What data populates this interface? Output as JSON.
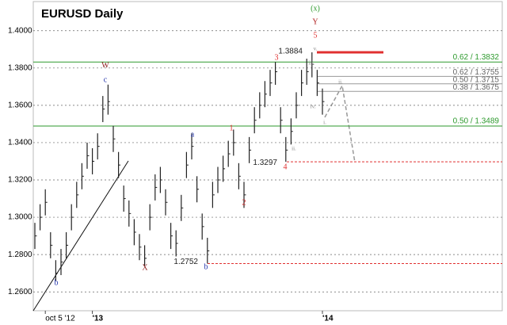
{
  "chart_data": {
    "type": "range_bar",
    "title": "EURUSD Daily",
    "categories": [
      null,
      null,
      "oct 5 '12",
      null,
      null,
      null,
      null,
      null,
      null,
      null,
      null,
      "'13",
      null,
      null,
      null,
      null,
      null,
      null,
      null,
      null,
      null,
      null,
      null,
      null,
      null,
      null,
      null,
      null,
      null,
      null,
      null,
      null,
      null,
      null,
      null,
      null,
      null,
      null,
      null,
      null,
      null,
      null,
      null,
      null,
      null,
      null,
      null,
      null,
      null,
      null,
      null,
      null,
      null,
      null,
      null,
      "'14"
    ],
    "series": [
      {
        "name": "high",
        "color": "#222222",
        "values": [
          1.297,
          1.307,
          1.315,
          1.292,
          1.277,
          1.283,
          1.292,
          1.307,
          1.319,
          1.329,
          1.34,
          1.337,
          1.345,
          1.365,
          1.3711,
          1.349,
          1.335,
          1.317,
          1.309,
          1.299,
          1.291,
          1.285,
          1.307,
          1.323,
          1.327,
          1.315,
          1.297,
          1.293,
          1.312,
          1.335,
          1.345,
          1.322,
          1.302,
          1.289,
          1.319,
          1.327,
          1.333,
          1.341,
          1.347,
          1.329,
          1.319,
          1.343,
          1.359,
          1.367,
          1.373,
          1.379,
          1.3832,
          1.359,
          1.343,
          1.353,
          1.367,
          1.379,
          1.385,
          1.3884,
          1.379,
          1.369
        ]
      },
      {
        "name": "low",
        "color": "#222222",
        "values": [
          1.283,
          1.293,
          1.301,
          1.278,
          1.266,
          1.269,
          1.278,
          1.293,
          1.305,
          1.315,
          1.326,
          1.323,
          1.331,
          1.351,
          1.355,
          1.335,
          1.321,
          1.303,
          1.295,
          1.285,
          1.277,
          1.274,
          1.293,
          1.309,
          1.313,
          1.301,
          1.283,
          1.279,
          1.298,
          1.321,
          1.331,
          1.308,
          1.288,
          1.2752,
          1.305,
          1.313,
          1.319,
          1.327,
          1.333,
          1.315,
          1.305,
          1.329,
          1.345,
          1.353,
          1.359,
          1.365,
          1.371,
          1.345,
          1.3297,
          1.339,
          1.353,
          1.365,
          1.371,
          1.375,
          1.365,
          1.355
        ]
      },
      {
        "name": "close",
        "color": "#222222",
        "values": [
          1.29,
          1.3,
          1.308,
          1.285,
          1.27,
          1.276,
          1.285,
          1.3,
          1.312,
          1.322,
          1.333,
          1.33,
          1.338,
          1.358,
          1.362,
          1.342,
          1.328,
          1.31,
          1.302,
          1.292,
          1.284,
          1.278,
          1.3,
          1.316,
          1.32,
          1.308,
          1.29,
          1.286,
          1.305,
          1.328,
          1.338,
          1.315,
          1.295,
          1.282,
          1.312,
          1.32,
          1.326,
          1.334,
          1.34,
          1.322,
          1.312,
          1.336,
          1.352,
          1.36,
          1.366,
          1.372,
          1.378,
          1.352,
          1.336,
          1.346,
          1.36,
          1.372,
          1.378,
          1.382,
          1.372,
          1.362
        ]
      }
    ],
    "ylim": [
      1.2499,
      1.4156
    ],
    "yticks": [
      {
        "value": 1.26,
        "label": "1.2600"
      },
      {
        "value": 1.28,
        "label": "1.2800"
      },
      {
        "value": 1.3,
        "label": "1.3000"
      },
      {
        "value": 1.32,
        "label": "1.3200"
      },
      {
        "value": 1.34,
        "label": "1.3400"
      },
      {
        "value": 1.36,
        "label": "1.3600"
      },
      {
        "value": 1.38,
        "label": "1.3800"
      },
      {
        "value": 1.4,
        "label": "1.4000"
      }
    ],
    "grid": true,
    "levels": [
      {
        "value": 1.3832,
        "label": "0.62 / 1.3832",
        "color": "#2e9a2e",
        "style": "full"
      },
      {
        "value": 1.3489,
        "label": "0.50 / 1.3489",
        "color": "#2e9a2e",
        "style": "full"
      },
      {
        "value": 1.3755,
        "label": "0.62 / 1.3755",
        "color": "#999999",
        "style": "right"
      },
      {
        "value": 1.3715,
        "label": "0.50 / 1.3715",
        "color": "#999999",
        "style": "right"
      },
      {
        "value": 1.3675,
        "label": "0.38 / 1.3675",
        "color": "#999999",
        "style": "right"
      },
      {
        "value": 1.3884,
        "label": "1.3884",
        "color": "#e03030",
        "style": "short"
      },
      {
        "value": 1.3297,
        "label": "1.3297",
        "color": "#e03030",
        "style": "dashed"
      },
      {
        "value": 1.2752,
        "label": "1.2752",
        "color": "#e03030",
        "style": "dashed"
      }
    ],
    "wave_labels": [
      {
        "text": "(x)",
        "color": "#2e9a2e"
      },
      {
        "text": "Y",
        "color": "#b02020"
      },
      {
        "text": "5",
        "color": "#e03030"
      },
      {
        "text": "W",
        "color": "#8b1a1a"
      },
      {
        "text": "c",
        "color": "#2233aa"
      },
      {
        "text": "a",
        "color": "#2233aa"
      },
      {
        "text": "X",
        "color": "#8b1a1a"
      },
      {
        "text": "b",
        "color": "#2233aa"
      },
      {
        "text": "b",
        "color": "#2233aa"
      },
      {
        "text": "1",
        "color": "#e03030"
      },
      {
        "text": "2",
        "color": "#e03030"
      },
      {
        "text": "3",
        "color": "#e03030"
      },
      {
        "text": "4",
        "color": "#e03030"
      },
      {
        "text": "v.",
        "color": "#888888"
      },
      {
        "text": "iii.",
        "color": "#888888"
      },
      {
        "text": "iv.",
        "color": "#888888"
      },
      {
        "text": "ii.",
        "color": "#888888"
      },
      {
        "text": "i.",
        "color": "#888888"
      },
      {
        "text": "ii.",
        "color": "#888888"
      }
    ]
  }
}
